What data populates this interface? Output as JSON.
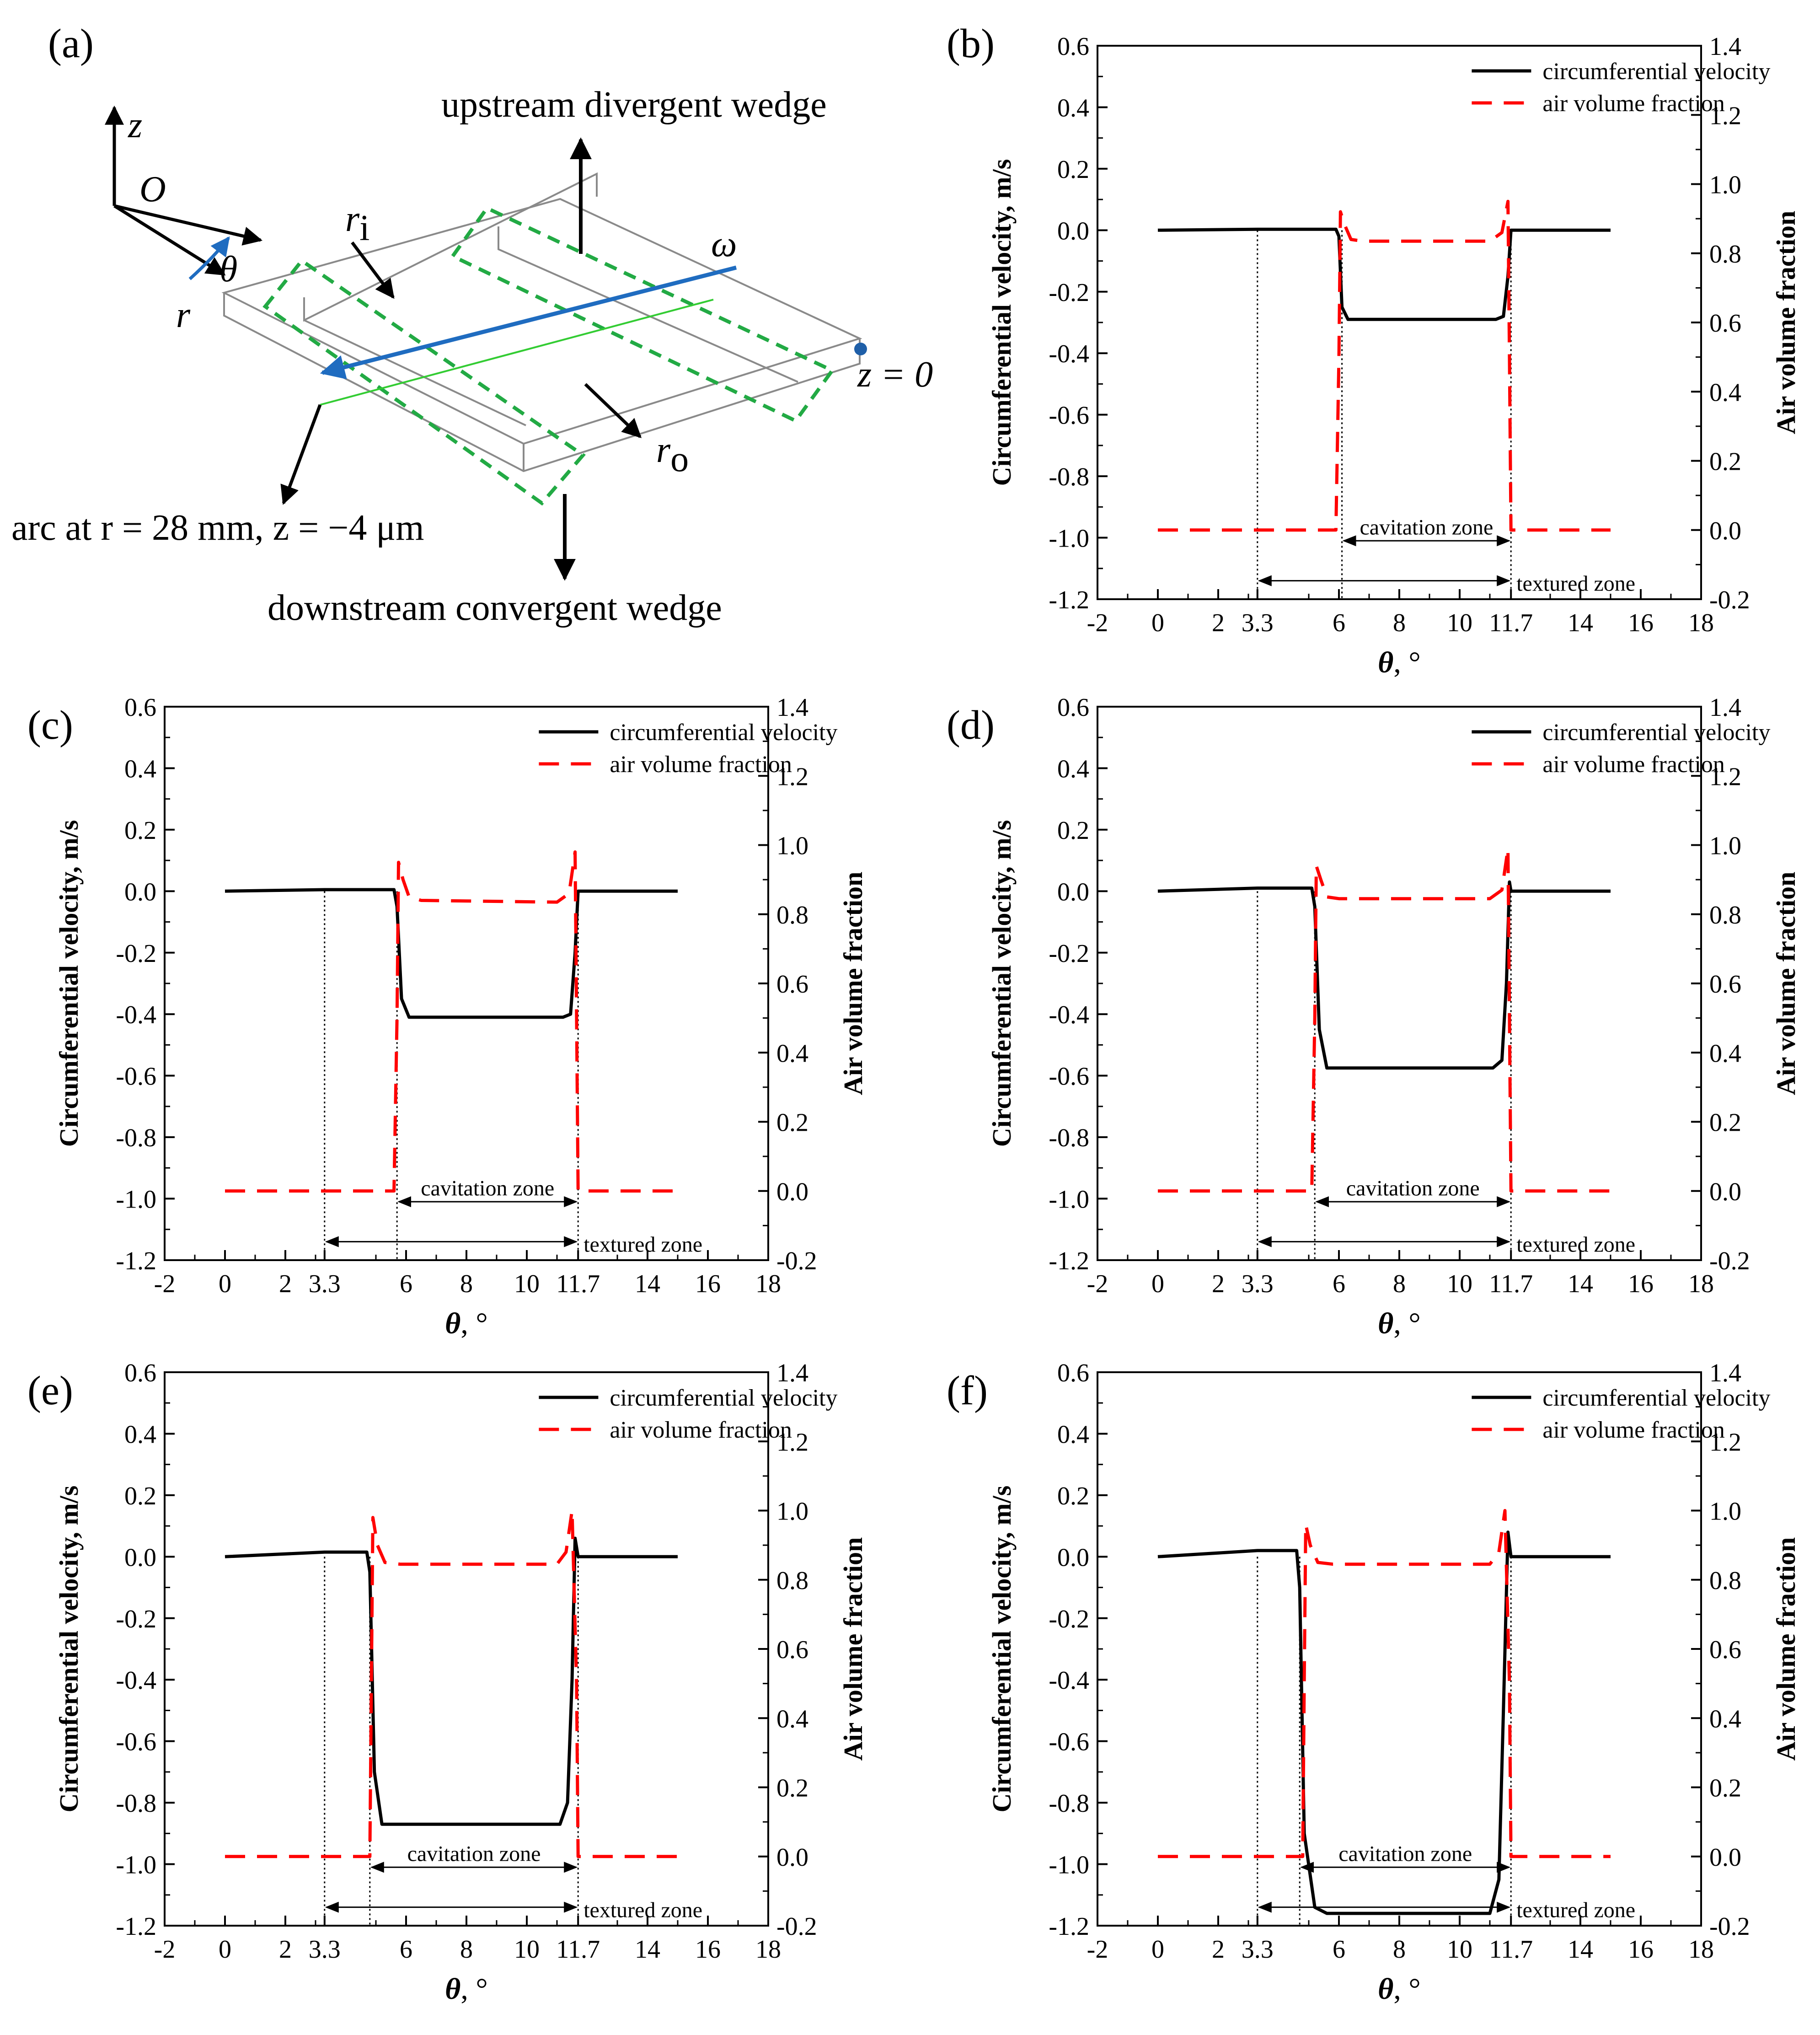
{
  "figure": {
    "panel_labels": [
      "(a)",
      "(b)",
      "(c)",
      "(d)",
      "(e)",
      "(f)"
    ]
  },
  "schematic": {
    "label": "(a)",
    "axis_z": "z",
    "origin": "O",
    "axis_r": "r",
    "angle": "θ",
    "inner_radius": "r",
    "inner_sub": "i",
    "outer_radius": "r",
    "outer_sub": "o",
    "omega": "ω",
    "z_zero": "z = 0",
    "upstream_label": "upstream divergent wedge",
    "downstream_label": "downstream convergent wedge",
    "arc_label": "arc at r = 28 mm, z = −4 μm",
    "colors": {
      "wedge": "#22aa44",
      "arc": "#1f6cc0",
      "green_line": "#33cc33",
      "point": "#1f5fa8"
    }
  },
  "chart_data": [
    {
      "panel": "(b)",
      "type": "line",
      "xlabel": "θ, °",
      "ylabel_left": "Circumferential velocity, m/s",
      "ylabel_right": "Air volume fraction",
      "xlim": [
        -2,
        18
      ],
      "ylim_left": [
        -1.2,
        0.6
      ],
      "ylim_right": [
        -0.2,
        1.4
      ],
      "xticks": [
        -2,
        0,
        2,
        3.3,
        6,
        8,
        10,
        11.7,
        14,
        16,
        18
      ],
      "xtick_labels": [
        "-2",
        "0",
        "2",
        "3.3",
        "6",
        "8",
        "10",
        "11.7",
        "14",
        "16",
        "18"
      ],
      "yticks_left": [
        "0.6",
        "0.4",
        "0.2",
        "0.0",
        "-0.2",
        "-0.4",
        "-0.6",
        "-0.8",
        "-1.0",
        "-1.2"
      ],
      "yticks_right": [
        "1.4",
        "1.2",
        "1.0",
        "0.8",
        "0.6",
        "0.4",
        "0.2",
        "0.0",
        "-0.2"
      ],
      "legend": [
        "circumferential velocity",
        "air volume fraction"
      ],
      "series": [
        {
          "name": "circumferential velocity",
          "color": "#000000",
          "x": [
            0,
            3.3,
            5.9,
            6.0,
            6.1,
            6.3,
            11.2,
            11.45,
            11.6,
            11.7,
            15
          ],
          "y": [
            0,
            0.003,
            0.003,
            -0.02,
            -0.25,
            -0.29,
            -0.29,
            -0.28,
            -0.15,
            0.0,
            0.0
          ]
        },
        {
          "name": "air volume fraction",
          "color": "#ff0000",
          "x": [
            0,
            5.9,
            6.0,
            6.05,
            6.2,
            6.4,
            6.8,
            11.0,
            11.4,
            11.6,
            11.65,
            11.7,
            15
          ],
          "y": [
            0,
            0,
            0.5,
            0.92,
            0.88,
            0.84,
            0.835,
            0.835,
            0.86,
            0.95,
            0.5,
            0,
            0
          ]
        }
      ],
      "annotations": {
        "cavitation_zone": {
          "text": "cavitation zone",
          "from": 6.1,
          "to": 11.7
        },
        "textured_zone": {
          "text": "textured zone",
          "from": 3.3,
          "to": 11.7
        }
      }
    },
    {
      "panel": "(c)",
      "type": "line",
      "xlabel": "θ, °",
      "ylabel_left": "Circumferential velocity, m/s",
      "ylabel_right": "Air volume fraction",
      "xlim": [
        -2,
        18
      ],
      "ylim_left": [
        -1.2,
        0.6
      ],
      "ylim_right": [
        -0.2,
        1.4
      ],
      "xticks": [
        -2,
        0,
        2,
        3.3,
        6,
        8,
        10,
        11.7,
        14,
        16,
        18
      ],
      "xtick_labels": [
        "-2",
        "0",
        "2",
        "3.3",
        "6",
        "8",
        "10",
        "11.7",
        "14",
        "16",
        "18"
      ],
      "yticks_left": [
        "0.6",
        "0.4",
        "0.2",
        "0.0",
        "-0.2",
        "-0.4",
        "-0.6",
        "-0.8",
        "-1.0",
        "-1.2"
      ],
      "yticks_right": [
        "1.4",
        "1.2",
        "1.0",
        "0.8",
        "0.6",
        "0.4",
        "0.2",
        "0.0",
        "-0.2"
      ],
      "legend": [
        "circumferential velocity",
        "air volume fraction"
      ],
      "series": [
        {
          "name": "circumferential velocity",
          "color": "#000000",
          "x": [
            0,
            3.3,
            5.6,
            5.7,
            5.85,
            6.1,
            11.2,
            11.45,
            11.6,
            11.7,
            15
          ],
          "y": [
            0,
            0.005,
            0.005,
            -0.05,
            -0.35,
            -0.41,
            -0.41,
            -0.4,
            -0.2,
            0.0,
            0.0
          ]
        },
        {
          "name": "air volume fraction",
          "color": "#ff0000",
          "x": [
            0,
            5.6,
            5.7,
            5.75,
            5.9,
            6.1,
            6.5,
            11.0,
            11.4,
            11.6,
            11.65,
            11.7,
            15
          ],
          "y": [
            0,
            0,
            0.5,
            0.95,
            0.9,
            0.85,
            0.84,
            0.835,
            0.86,
            0.98,
            0.5,
            0,
            0
          ]
        }
      ],
      "annotations": {
        "cavitation_zone": {
          "text": "cavitation zone",
          "from": 5.7,
          "to": 11.7
        },
        "textured_zone": {
          "text": "textured zone",
          "from": 3.3,
          "to": 11.7
        }
      }
    },
    {
      "panel": "(d)",
      "type": "line",
      "xlabel": "θ, °",
      "ylabel_left": "Circumferential velocity, m/s",
      "ylabel_right": "Air volume fraction",
      "xlim": [
        -2,
        18
      ],
      "ylim_left": [
        -1.2,
        0.6
      ],
      "ylim_right": [
        -0.2,
        1.4
      ],
      "xticks": [
        -2,
        0,
        2,
        3.3,
        6,
        8,
        10,
        11.7,
        14,
        16,
        18
      ],
      "xtick_labels": [
        "-2",
        "0",
        "2",
        "3.3",
        "6",
        "8",
        "10",
        "11.7",
        "14",
        "16",
        "18"
      ],
      "yticks_left": [
        "0.6",
        "0.4",
        "0.2",
        "0.0",
        "-0.2",
        "-0.4",
        "-0.6",
        "-0.8",
        "-1.0",
        "-1.2"
      ],
      "yticks_right": [
        "1.4",
        "1.2",
        "1.0",
        "0.8",
        "0.6",
        "0.4",
        "0.2",
        "0.0",
        "-0.2"
      ],
      "legend": [
        "circumferential velocity",
        "air volume fraction"
      ],
      "series": [
        {
          "name": "circumferential velocity",
          "color": "#000000",
          "x": [
            0,
            3.3,
            5.1,
            5.2,
            5.35,
            5.6,
            11.1,
            11.4,
            11.55,
            11.65,
            11.7,
            15
          ],
          "y": [
            0,
            0.01,
            0.01,
            -0.05,
            -0.45,
            -0.575,
            -0.575,
            -0.55,
            -0.3,
            0.03,
            0.0,
            0.0
          ]
        },
        {
          "name": "air volume fraction",
          "color": "#ff0000",
          "x": [
            0,
            5.1,
            5.2,
            5.25,
            5.4,
            5.6,
            6.0,
            11.0,
            11.4,
            11.6,
            11.65,
            11.7,
            15
          ],
          "y": [
            0,
            0,
            0.5,
            0.94,
            0.9,
            0.85,
            0.845,
            0.845,
            0.87,
            0.99,
            0.5,
            0,
            0
          ]
        }
      ],
      "annotations": {
        "cavitation_zone": {
          "text": "cavitation zone",
          "from": 5.2,
          "to": 11.7
        },
        "textured_zone": {
          "text": "textured zone",
          "from": 3.3,
          "to": 11.7
        }
      }
    },
    {
      "panel": "(e)",
      "type": "line",
      "xlabel": "θ, °",
      "ylabel_left": "Circumferential velocity, m/s",
      "ylabel_right": "Air volume fraction",
      "xlim": [
        -2,
        18
      ],
      "ylim_left": [
        -1.2,
        0.6
      ],
      "ylim_right": [
        -0.2,
        1.4
      ],
      "xticks": [
        -2,
        0,
        2,
        3.3,
        6,
        8,
        10,
        11.7,
        14,
        16,
        18
      ],
      "xtick_labels": [
        "-2",
        "0",
        "2",
        "3.3",
        "6",
        "8",
        "10",
        "11.7",
        "14",
        "16",
        "18"
      ],
      "yticks_left": [
        "0.6",
        "0.4",
        "0.2",
        "0.0",
        "-0.2",
        "-0.4",
        "-0.6",
        "-0.8",
        "-1.0",
        "-1.2"
      ],
      "yticks_right": [
        "1.4",
        "1.2",
        "1.0",
        "0.8",
        "0.6",
        "0.4",
        "0.2",
        "0.0",
        "-0.2"
      ],
      "legend": [
        "circumferential velocity",
        "air volume fraction"
      ],
      "series": [
        {
          "name": "circumferential velocity",
          "color": "#000000",
          "x": [
            0,
            3.3,
            4.7,
            4.8,
            4.95,
            5.2,
            11.1,
            11.35,
            11.5,
            11.6,
            11.7,
            15
          ],
          "y": [
            0,
            0.015,
            0.015,
            -0.05,
            -0.7,
            -0.87,
            -0.87,
            -0.8,
            -0.4,
            0.06,
            0.0,
            0.0
          ]
        },
        {
          "name": "air volume fraction",
          "color": "#ff0000",
          "x": [
            0,
            4.8,
            4.85,
            4.9,
            5.05,
            5.3,
            5.8,
            11.0,
            11.3,
            11.5,
            11.65,
            11.7,
            15
          ],
          "y": [
            0,
            0,
            0.5,
            0.98,
            0.9,
            0.85,
            0.845,
            0.845,
            0.88,
            1.0,
            0.5,
            0,
            0
          ]
        }
      ],
      "annotations": {
        "cavitation_zone": {
          "text": "cavitation zone",
          "from": 4.8,
          "to": 11.7
        },
        "textured_zone": {
          "text": "textured zone",
          "from": 3.3,
          "to": 11.7
        }
      }
    },
    {
      "panel": "(f)",
      "type": "line",
      "xlabel": "θ, °",
      "ylabel_left": "Circumferential velocity, m/s",
      "ylabel_right": "Air volume fraction",
      "xlim": [
        -2,
        18
      ],
      "ylim_left": [
        -1.2,
        0.6
      ],
      "ylim_right": [
        -0.2,
        1.4
      ],
      "xticks": [
        -2,
        0,
        2,
        3.3,
        6,
        8,
        10,
        11.7,
        14,
        16,
        18
      ],
      "xtick_labels": [
        "-2",
        "0",
        "2",
        "3.3",
        "6",
        "8",
        "10",
        "11.7",
        "14",
        "16",
        "18"
      ],
      "yticks_left": [
        "0.6",
        "0.4",
        "0.2",
        "0.0",
        "-0.2",
        "-0.4",
        "-0.6",
        "-0.8",
        "-1.0",
        "-1.2"
      ],
      "yticks_right": [
        "1.4",
        "1.2",
        "1.0",
        "0.8",
        "0.6",
        "0.4",
        "0.2",
        "0.0",
        "-0.2"
      ],
      "legend": [
        "circumferential velocity",
        "air volume fraction"
      ],
      "series": [
        {
          "name": "circumferential velocity",
          "color": "#000000",
          "x": [
            0,
            3.3,
            4.6,
            4.7,
            4.85,
            5.2,
            5.6,
            11.0,
            11.3,
            11.45,
            11.6,
            11.7,
            15
          ],
          "y": [
            0,
            0.02,
            0.02,
            -0.1,
            -0.9,
            -1.14,
            -1.16,
            -1.16,
            -1.05,
            -0.5,
            0.08,
            0.0,
            0.0
          ]
        },
        {
          "name": "air volume fraction",
          "color": "#ff0000",
          "x": [
            0,
            4.8,
            4.85,
            4.9,
            5.05,
            5.3,
            5.8,
            11.0,
            11.3,
            11.5,
            11.65,
            11.7,
            15
          ],
          "y": [
            0,
            0,
            0.5,
            0.96,
            0.9,
            0.85,
            0.845,
            0.845,
            0.88,
            1.0,
            0.5,
            0,
            0
          ]
        }
      ],
      "annotations": {
        "cavitation_zone": {
          "text": "cavitation zone",
          "from": 4.7,
          "to": 11.7
        },
        "textured_zone": {
          "text": "textured zone",
          "from": 3.3,
          "to": 11.7
        }
      }
    }
  ]
}
